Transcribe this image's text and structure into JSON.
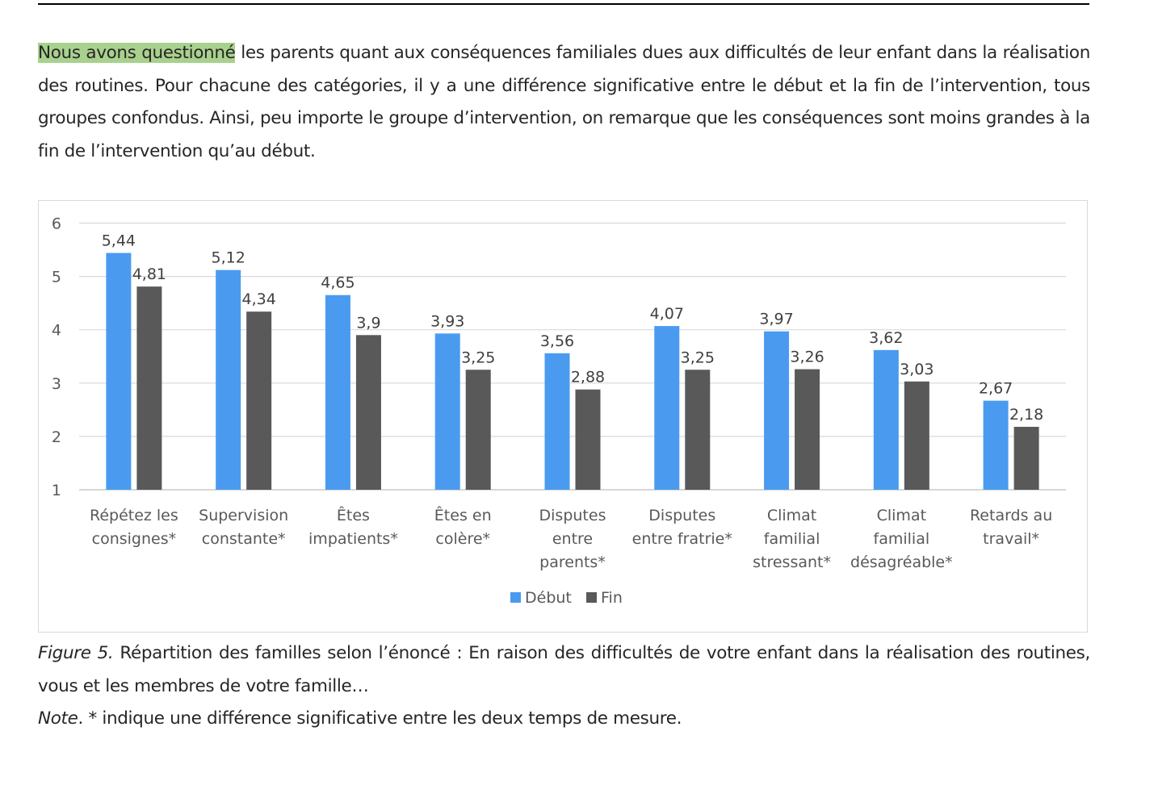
{
  "paragraph": {
    "highlight": "Nous avons questionné",
    "rest": " les parents quant aux conséquences familiales dues aux difficultés de leur enfant dans la réalisation des routines. Pour chacune des catégories, il y a une différence significative entre le début et la fin de l’intervention, tous groupes confondus. Ainsi, peu importe le groupe d’intervention, on remarque que les conséquences sont moins grandes à la fin de l’intervention qu’au début."
  },
  "chart_data": {
    "type": "bar",
    "title": "",
    "xlabel": "",
    "ylabel": "",
    "ylim": [
      1,
      6
    ],
    "yticks": [
      "1",
      "2",
      "3",
      "4",
      "5",
      "6"
    ],
    "grid": true,
    "legend_position": "bottom",
    "categories": [
      [
        "Répétez les",
        "consignes*"
      ],
      [
        "Supervision",
        "constante*"
      ],
      [
        "Êtes",
        "impatients*"
      ],
      [
        "Êtes en",
        "colère*"
      ],
      [
        "Disputes",
        "entre",
        "parents*"
      ],
      [
        "Disputes",
        "entre fratrie*"
      ],
      [
        "Climat",
        "familial",
        "stressant*"
      ],
      [
        "Climat",
        "familial",
        "désagréable*"
      ],
      [
        "Retards au",
        "travail*"
      ]
    ],
    "series": [
      {
        "name": "Début",
        "color": "#4a9bf0",
        "values": [
          5.44,
          5.12,
          4.65,
          3.93,
          3.56,
          4.07,
          3.97,
          3.62,
          2.67
        ],
        "labels": [
          "5,44",
          "5,12",
          "4,65",
          "3,93",
          "3,56",
          "4,07",
          "3,97",
          "3,62",
          "2,67"
        ]
      },
      {
        "name": "Fin",
        "color": "#595959",
        "values": [
          4.81,
          4.34,
          3.9,
          3.25,
          2.88,
          3.25,
          3.26,
          3.03,
          2.18
        ],
        "labels": [
          "4,81",
          "4,34",
          "3,9",
          "3,25",
          "2,88",
          "3,25",
          "3,26",
          "3,03",
          "2,18"
        ]
      }
    ]
  },
  "caption": {
    "figure_label": "Figure 5.",
    "text": " Répartition des familles selon l’énoncé : En raison des difficultés de votre enfant dans la réalisation des routines, vous et les membres de votre famille…"
  },
  "note": {
    "label": "Note",
    "text": ". * indique une différence significative entre les deux temps de mesure."
  }
}
